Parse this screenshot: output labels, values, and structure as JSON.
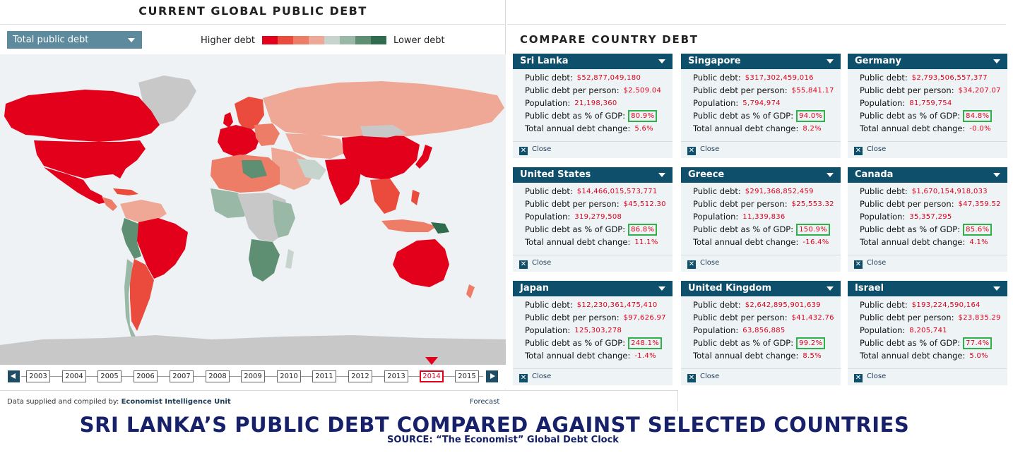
{
  "map": {
    "title": "CURRENT GLOBAL PUBLIC DEBT",
    "metric_selected": "Total public debt",
    "legend": {
      "higher_label": "Higher debt",
      "lower_label": "Lower debt",
      "colors": [
        "#e3001b",
        "#ea4b3c",
        "#ee7d68",
        "#f0a896",
        "#c7d4cd",
        "#99b9a6",
        "#5f8f72",
        "#2f6b4d"
      ]
    },
    "timeline": {
      "years": [
        "2003",
        "2004",
        "2005",
        "2006",
        "2007",
        "2008",
        "2009",
        "2010",
        "2011",
        "2012",
        "2013",
        "2014",
        "2015"
      ],
      "selected": "2014"
    }
  },
  "footer": {
    "credit_prefix": "Data supplied and compiled by:",
    "credit_source": "Economist Intelligence Unit",
    "forecast": "Forecast"
  },
  "compare": {
    "title": "COMPARE COUNTRY DEBT",
    "labels": {
      "public_debt": "Public debt:",
      "per_person": "Public debt per person:",
      "population": "Population:",
      "pct_gdp": "Public debt as % of GDP:",
      "annual_change": "Total annual debt change:",
      "close": "Close"
    },
    "cards": [
      {
        "country": "Sri Lanka",
        "public_debt": "$52,877,049,180",
        "per_person": "$2,509.04",
        "population": "21,198,360",
        "pct_gdp": "80.9%",
        "annual_change": "5.6%"
      },
      {
        "country": "Singapore",
        "public_debt": "$317,302,459,016",
        "per_person": "$55,841.17",
        "population": "5,794,974",
        "pct_gdp": "94.0%",
        "annual_change": "8.2%"
      },
      {
        "country": "Germany",
        "public_debt": "$2,793,506,557,377",
        "per_person": "$34,207.07",
        "population": "81,759,754",
        "pct_gdp": "84.8%",
        "annual_change": "-0.0%"
      },
      {
        "country": "United States",
        "public_debt": "$14,466,015,573,771",
        "per_person": "$45,512.30",
        "population": "319,279,508",
        "pct_gdp": "86.8%",
        "annual_change": "11.1%"
      },
      {
        "country": "Greece",
        "public_debt": "$291,368,852,459",
        "per_person": "$25,553.32",
        "population": "11,339,836",
        "pct_gdp": "150.9%",
        "annual_change": "-16.4%"
      },
      {
        "country": "Canada",
        "public_debt": "$1,670,154,918,033",
        "per_person": "$47,359.52",
        "population": "35,357,295",
        "pct_gdp": "85.6%",
        "annual_change": "4.1%"
      },
      {
        "country": "Japan",
        "public_debt": "$12,230,361,475,410",
        "per_person": "$97,626.97",
        "population": "125,303,278",
        "pct_gdp": "248.1%",
        "annual_change": "-1.4%"
      },
      {
        "country": "United Kingdom",
        "public_debt": "$2,642,895,901,639",
        "per_person": "$41,432.76",
        "population": "63,856,885",
        "pct_gdp": "99.2%",
        "annual_change": "8.5%"
      },
      {
        "country": "Israel",
        "public_debt": "$193,224,590,164",
        "per_person": "$23,835.29",
        "population": "8,205,741",
        "pct_gdp": "77.4%",
        "annual_change": "5.0%"
      }
    ]
  },
  "caption": {
    "title": "SRI LANKA’S PUBLIC DEBT COMPARED AGAINST SELECTED COUNTRIES",
    "source": "SOURCE: “The Economist” Global Debt Clock"
  }
}
